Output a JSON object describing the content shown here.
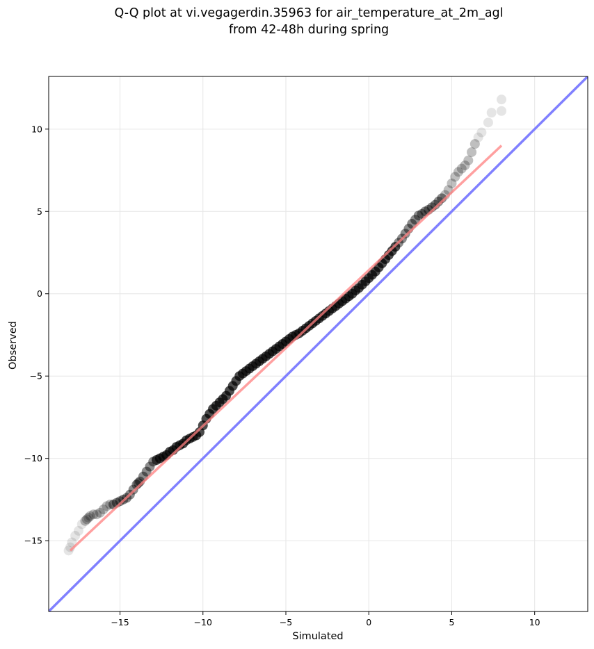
{
  "chart_data": {
    "type": "scatter",
    "title_lines": [
      "Q-Q plot at vi.vegagerdin.35963 for air_temperature_at_2m_agl",
      "from 42-48h during spring"
    ],
    "xlabel": "Simulated",
    "ylabel": "Observed",
    "xlim": [
      -19.3,
      13.2
    ],
    "ylim": [
      -19.3,
      13.2
    ],
    "xticks": [
      -15,
      -10,
      -5,
      0,
      5,
      10
    ],
    "yticks": [
      -15,
      -10,
      -5,
      0,
      5,
      10
    ],
    "tick_labels": [
      "−15",
      "−10",
      "−5",
      "0",
      "5",
      "10"
    ],
    "grid": true,
    "colors": {
      "points": "#000000",
      "fit_line": "#ff8080",
      "identity_line": "#8080ff",
      "grid": "#e6e6e6"
    },
    "series": [
      {
        "type": "scatter",
        "x": [
          -18.1,
          -18.0,
          -17.9,
          -17.7,
          -17.5,
          -17.3,
          -17.1,
          -17.0,
          -16.9,
          -16.8,
          -16.6,
          -16.4,
          -16.2,
          -16.0,
          -15.8,
          -15.6,
          -15.4,
          -15.2,
          -15.0,
          -14.8,
          -14.6,
          -14.4,
          -14.2,
          -14.0,
          -13.9,
          -13.8,
          -13.6,
          -13.4,
          -13.2,
          -13.0,
          -12.8,
          -12.6,
          -12.4,
          -12.2,
          -12.0,
          -11.8,
          -11.6,
          -11.4,
          -11.2,
          -11.0,
          -10.8,
          -10.6,
          -10.4,
          -10.2,
          -10.0,
          -9.8,
          -9.6,
          -9.4,
          -9.2,
          -9.0,
          -8.8,
          -8.6,
          -8.4,
          -8.2,
          -8.0,
          -7.8,
          -7.6,
          -7.4,
          -7.2,
          -7.0,
          -6.8,
          -6.6,
          -6.4,
          -6.2,
          -6.0,
          -5.8,
          -5.6,
          -5.4,
          -5.2,
          -5.0,
          -4.8,
          -4.6,
          -4.4,
          -4.2,
          -4.0,
          -3.8,
          -3.6,
          -3.4,
          -3.2,
          -3.0,
          -2.8,
          -2.6,
          -2.4,
          -2.2,
          -2.0,
          -1.8,
          -1.6,
          -1.4,
          -1.2,
          -1.0,
          -0.8,
          -0.6,
          -0.4,
          -0.2,
          0.0,
          0.2,
          0.4,
          0.6,
          0.8,
          1.0,
          1.2,
          1.4,
          1.6,
          1.8,
          2.0,
          2.2,
          2.4,
          2.6,
          2.8,
          3.0,
          3.2,
          3.4,
          3.6,
          3.8,
          4.0,
          4.2,
          4.4,
          4.6,
          4.8,
          5.0,
          5.2,
          5.4,
          5.6,
          5.8,
          6.0,
          6.2,
          6.4,
          6.6,
          6.8,
          7.2,
          7.4,
          8.0,
          8.0
        ],
        "y": [
          -15.6,
          -15.4,
          -15.1,
          -14.7,
          -14.4,
          -14.0,
          -13.8,
          -13.7,
          -13.6,
          -13.5,
          -13.4,
          -13.4,
          -13.3,
          -13.1,
          -12.9,
          -12.8,
          -12.8,
          -12.7,
          -12.6,
          -12.5,
          -12.4,
          -12.2,
          -11.9,
          -11.6,
          -11.5,
          -11.4,
          -11.1,
          -10.8,
          -10.5,
          -10.2,
          -10.1,
          -10.0,
          -9.9,
          -9.8,
          -9.6,
          -9.5,
          -9.3,
          -9.2,
          -9.1,
          -8.9,
          -8.8,
          -8.7,
          -8.6,
          -8.4,
          -8.0,
          -7.6,
          -7.3,
          -7.0,
          -6.8,
          -6.6,
          -6.4,
          -6.2,
          -5.9,
          -5.6,
          -5.3,
          -5.0,
          -4.85,
          -4.7,
          -4.55,
          -4.4,
          -4.25,
          -4.1,
          -3.95,
          -3.8,
          -3.65,
          -3.5,
          -3.35,
          -3.2,
          -3.05,
          -2.9,
          -2.75,
          -2.6,
          -2.5,
          -2.4,
          -2.25,
          -2.1,
          -1.95,
          -1.8,
          -1.65,
          -1.5,
          -1.35,
          -1.2,
          -1.05,
          -0.9,
          -0.75,
          -0.6,
          -0.45,
          -0.3,
          -0.15,
          0.0,
          0.2,
          0.35,
          0.55,
          0.75,
          0.95,
          1.15,
          1.35,
          1.6,
          1.85,
          2.1,
          2.35,
          2.6,
          2.85,
          3.1,
          3.35,
          3.65,
          3.95,
          4.25,
          4.5,
          4.75,
          4.85,
          5.0,
          5.1,
          5.25,
          5.4,
          5.6,
          5.8,
          6.0,
          6.3,
          6.7,
          7.1,
          7.4,
          7.6,
          7.8,
          8.1,
          8.6,
          9.1,
          9.5,
          9.8,
          10.4,
          11.0,
          11.1,
          11.8
        ]
      },
      {
        "type": "line",
        "x": [
          -18.0,
          8.0
        ],
        "y": [
          -15.6,
          9.0
        ]
      },
      {
        "type": "line",
        "x": [
          -19.3,
          13.2
        ],
        "y": [
          -19.3,
          13.2
        ]
      }
    ]
  }
}
